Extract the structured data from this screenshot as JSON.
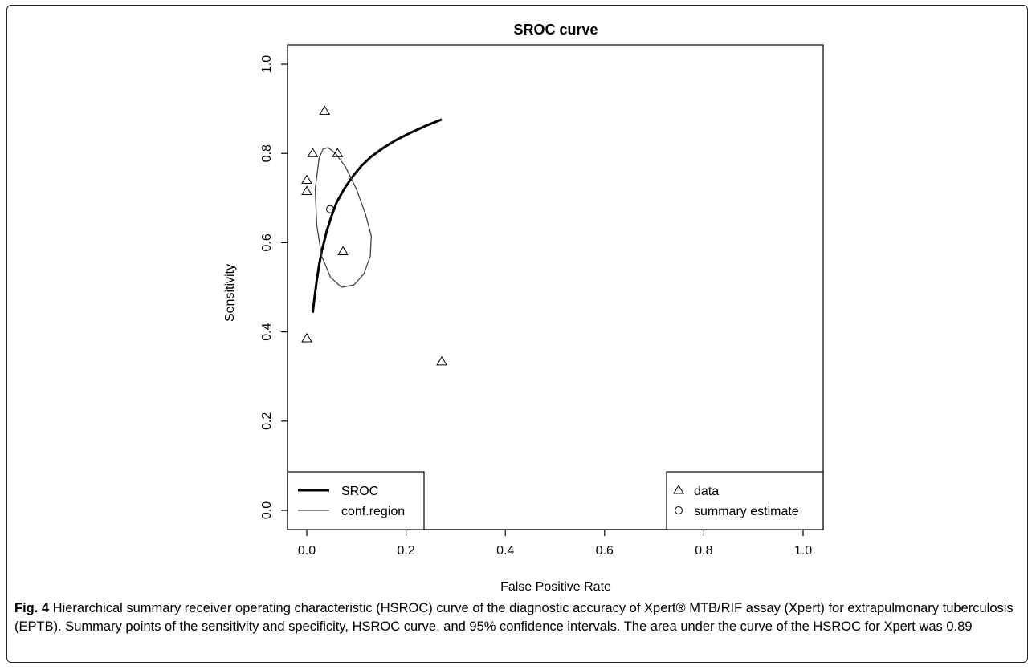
{
  "chart_data": {
    "type": "scatter",
    "title": "SROC curve",
    "xlabel": "False Positive Rate",
    "ylabel": "Sensitivity",
    "xlim": [
      0,
      1
    ],
    "ylim": [
      0,
      1
    ],
    "x_ticks": [
      "0.0",
      "0.2",
      "0.4",
      "0.6",
      "0.8",
      "1.0"
    ],
    "y_ticks": [
      "0.0",
      "0.2",
      "0.4",
      "0.6",
      "0.8",
      "1.0"
    ],
    "grid": false,
    "series": [
      {
        "name": "data",
        "marker": "triangle",
        "points": [
          {
            "x": 0.036,
            "y": 0.895
          },
          {
            "x": 0.012,
            "y": 0.8
          },
          {
            "x": 0.062,
            "y": 0.8
          },
          {
            "x": 0.0,
            "y": 0.74
          },
          {
            "x": 0.0,
            "y": 0.715
          },
          {
            "x": 0.073,
            "y": 0.58
          },
          {
            "x": 0.0,
            "y": 0.385
          },
          {
            "x": 0.272,
            "y": 0.333
          }
        ]
      },
      {
        "name": "summary estimate",
        "marker": "circle",
        "points": [
          {
            "x": 0.047,
            "y": 0.675
          }
        ]
      },
      {
        "name": "SROC",
        "style": "thick-line",
        "points": [
          {
            "x": 0.012,
            "y": 0.443
          },
          {
            "x": 0.016,
            "y": 0.48
          },
          {
            "x": 0.02,
            "y": 0.515
          },
          {
            "x": 0.025,
            "y": 0.55
          },
          {
            "x": 0.03,
            "y": 0.58
          },
          {
            "x": 0.04,
            "y": 0.625
          },
          {
            "x": 0.05,
            "y": 0.66
          },
          {
            "x": 0.06,
            "y": 0.69
          },
          {
            "x": 0.075,
            "y": 0.72
          },
          {
            "x": 0.09,
            "y": 0.745
          },
          {
            "x": 0.11,
            "y": 0.772
          },
          {
            "x": 0.13,
            "y": 0.793
          },
          {
            "x": 0.155,
            "y": 0.813
          },
          {
            "x": 0.18,
            "y": 0.83
          },
          {
            "x": 0.21,
            "y": 0.847
          },
          {
            "x": 0.24,
            "y": 0.862
          },
          {
            "x": 0.272,
            "y": 0.876
          }
        ]
      },
      {
        "name": "conf.region",
        "style": "thin-line",
        "closed": true,
        "points": [
          {
            "x": 0.025,
            "y": 0.79
          },
          {
            "x": 0.033,
            "y": 0.81
          },
          {
            "x": 0.043,
            "y": 0.813
          },
          {
            "x": 0.058,
            "y": 0.8
          },
          {
            "x": 0.078,
            "y": 0.77
          },
          {
            "x": 0.1,
            "y": 0.72
          },
          {
            "x": 0.118,
            "y": 0.665
          },
          {
            "x": 0.13,
            "y": 0.615
          },
          {
            "x": 0.128,
            "y": 0.57
          },
          {
            "x": 0.115,
            "y": 0.53
          },
          {
            "x": 0.095,
            "y": 0.505
          },
          {
            "x": 0.07,
            "y": 0.5
          },
          {
            "x": 0.048,
            "y": 0.522
          },
          {
            "x": 0.03,
            "y": 0.57
          },
          {
            "x": 0.02,
            "y": 0.64
          },
          {
            "x": 0.017,
            "y": 0.72
          }
        ]
      }
    ],
    "legends": [
      {
        "position": "bottom-left",
        "items": [
          {
            "label": "SROC",
            "style": "thick-line"
          },
          {
            "label": "conf.region",
            "style": "thin-line"
          }
        ]
      },
      {
        "position": "bottom-right",
        "items": [
          {
            "label": "data",
            "marker": "triangle"
          },
          {
            "label": "summary estimate",
            "marker": "circle"
          }
        ]
      }
    ]
  },
  "caption": {
    "label": "Fig. 4",
    "text": " Hierarchical summary receiver operating characteristic (HSROC) curve of the diagnostic accuracy of Xpert® MTB/RIF assay (Xpert) for extrapulmonary tuberculosis (EPTB). Summary points of the sensitivity and specificity, HSROC curve, and 95% confidence intervals. The area under the curve of the HSROC for Xpert was 0.89"
  }
}
